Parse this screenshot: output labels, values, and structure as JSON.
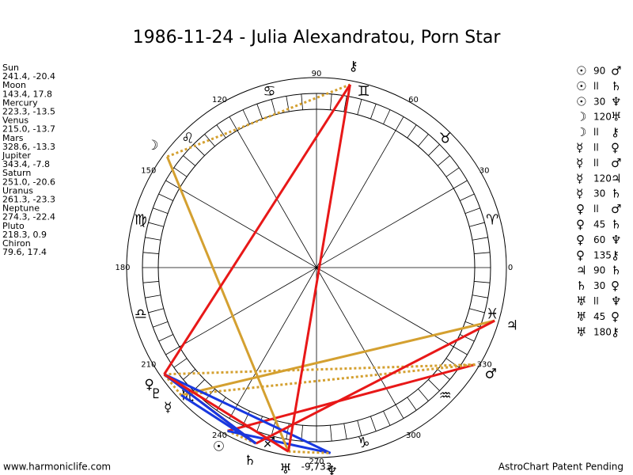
{
  "title": "1986-11-24 - Julia Alexandratou, Porn Star",
  "planets": [
    {
      "name": "Sun",
      "coords": "241.4, -20.4",
      "glyph": "☉"
    },
    {
      "name": "Moon",
      "coords": "143.4, 17.8",
      "glyph": "☽"
    },
    {
      "name": "Mercury",
      "coords": "223.3, -13.5",
      "glyph": "☿"
    },
    {
      "name": "Venus",
      "coords": "215.0, -13.7",
      "glyph": "♀"
    },
    {
      "name": "Mars",
      "coords": "328.6, -13.3",
      "glyph": "♂"
    },
    {
      "name": "Jupiter",
      "coords": "343.4, -7.8",
      "glyph": "♃"
    },
    {
      "name": "Saturn",
      "coords": "251.0, -20.6",
      "glyph": "♄"
    },
    {
      "name": "Uranus",
      "coords": "261.3, -23.3",
      "glyph": "♅"
    },
    {
      "name": "Neptune",
      "coords": "274.3, -22.4",
      "glyph": "♆"
    },
    {
      "name": "Pluto",
      "coords": "218.3, 0.9",
      "glyph": "♇"
    },
    {
      "name": "Chiron",
      "coords": "79.6, 17.4",
      "glyph": "⚷"
    }
  ],
  "aspects": [
    {
      "glyph1": "☉",
      "label": "90",
      "glyph2": "♂",
      "color": "#e81818",
      "dotted": false
    },
    {
      "glyph1": "☉",
      "label": "ll",
      "glyph2": "♄",
      "color": "#d4a030",
      "dotted": true
    },
    {
      "glyph1": "☉",
      "label": "30",
      "glyph2": "♆",
      "color": "#1838e0",
      "dotted": false
    },
    {
      "glyph1": "☽",
      "label": "120",
      "glyph2": "♅",
      "color": "#d4a030",
      "dotted": false
    },
    {
      "glyph1": "☽",
      "label": "ll",
      "glyph2": "⚷",
      "color": "#d4a030",
      "dotted": true
    },
    {
      "glyph1": "☿",
      "label": "ll",
      "glyph2": "♀",
      "color": "#d4a030",
      "dotted": true
    },
    {
      "glyph1": "☿",
      "label": "ll",
      "glyph2": "♂",
      "color": "#d4a030",
      "dotted": true
    },
    {
      "glyph1": "☿",
      "label": "120",
      "glyph2": "♃",
      "color": "#d4a030",
      "dotted": false
    },
    {
      "glyph1": "☿",
      "label": "30",
      "glyph2": "♄",
      "color": "#1838e0",
      "dotted": false
    },
    {
      "glyph1": "♀",
      "label": "ll",
      "glyph2": "♂",
      "color": "#d4a030",
      "dotted": true
    },
    {
      "glyph1": "♀",
      "label": "45",
      "glyph2": "♄",
      "color": "#e81818",
      "dotted": false
    },
    {
      "glyph1": "♀",
      "label": "60",
      "glyph2": "♆",
      "color": "#1838e0",
      "dotted": false
    },
    {
      "glyph1": "♀",
      "label": "135",
      "glyph2": "⚷",
      "color": "#e81818",
      "dotted": false
    },
    {
      "glyph1": "♃",
      "label": "90",
      "glyph2": "♄",
      "color": "#e81818",
      "dotted": false
    },
    {
      "glyph1": "♄",
      "label": "30",
      "glyph2": "♀",
      "color": "#1838e0",
      "dotted": false
    },
    {
      "glyph1": "♅",
      "label": "ll",
      "glyph2": "♆",
      "color": "#d4a030",
      "dotted": true
    },
    {
      "glyph1": "♅",
      "label": "45",
      "glyph2": "♀",
      "color": "#e81818",
      "dotted": false
    },
    {
      "glyph1": "♅",
      "label": "180",
      "glyph2": "⚷",
      "color": "#e81818",
      "dotted": false
    }
  ],
  "degree_labels": [
    0,
    30,
    60,
    90,
    120,
    150,
    180,
    210,
    240,
    270,
    300,
    330
  ],
  "signs": [
    "♈",
    "♉",
    "♊",
    "♋",
    "♌",
    "♍",
    "♎",
    "♏",
    "♐",
    "♑",
    "♒",
    "♓"
  ],
  "bottom_note": "-9,733",
  "footer_left": "www.harmoniclife.com",
  "footer_right": "AstroChart Patent Pending"
}
